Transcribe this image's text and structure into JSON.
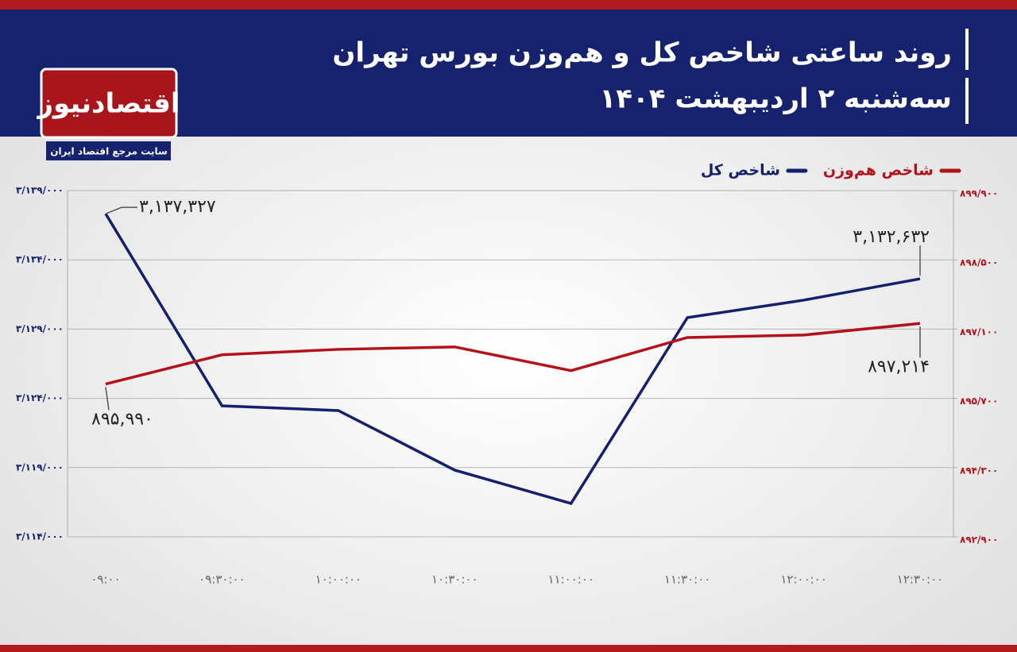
{
  "header": {
    "title": "روند ساعتی شاخص کل و هم‌وزن بورس تهران",
    "subtitle": "سه‌شنبه ۲ اردیبهشت ۱۴۰۴",
    "logo": "اقتصادنیوز",
    "logo_tagline": "سایت مرجع اقتصاد ایران"
  },
  "chart_data": {
    "type": "line",
    "categories": [
      "۰۹:۰۰",
      "۰۹:۳۰:۰۰",
      "۱۰:۰۰:۰۰",
      "۱۰:۳۰:۰۰",
      "۱۱:۰۰:۰۰",
      "۱۱:۳۰:۰۰",
      "۱۲:۰۰:۰۰",
      "۱۲:۳۰:۰۰"
    ],
    "series": [
      {
        "name": "شاخص کل",
        "color": "#15206a",
        "values": [
          3137327,
          3123460,
          3123120,
          3118820,
          3116410,
          3129830,
          3131090,
          3132632
        ],
        "value_labels": [
          "۳,۱۳۷,۳۲۷",
          null,
          null,
          null,
          null,
          null,
          null,
          "۳,۱۳۲,۶۳۲"
        ]
      },
      {
        "name": "شاخص هم‌وزن",
        "color": "#b3121b",
        "axis": "y2",
        "values": [
          895990,
          896580,
          896690,
          896740,
          896260,
          896930,
          896980,
          897214
        ],
        "value_labels": [
          "۸۹۵,۹۹۰",
          null,
          null,
          null,
          null,
          null,
          null,
          "۸۹۷,۲۱۴"
        ]
      }
    ],
    "ylim": [
      3114000,
      3139000
    ],
    "yticks": [
      {
        "value": 3114000,
        "label": "۳/۱۱۴/۰۰۰"
      },
      {
        "value": 3119000,
        "label": "۳/۱۱۹/۰۰۰"
      },
      {
        "value": 3124000,
        "label": "۳/۱۲۴/۰۰۰"
      },
      {
        "value": 3129000,
        "label": "۳/۱۲۹/۰۰۰"
      },
      {
        "value": 3134000,
        "label": "۳/۱۳۴/۰۰۰"
      },
      {
        "value": 3139000,
        "label": "۳/۱۳۹/۰۰۰"
      }
    ],
    "y2lim": [
      892900,
      899900
    ],
    "y2ticks": [
      {
        "value": 892900,
        "label": "۸۹۲/۹۰۰"
      },
      {
        "value": 894300,
        "label": "۸۹۴/۳۰۰"
      },
      {
        "value": 895700,
        "label": "۸۹۵/۷۰۰"
      },
      {
        "value": 897100,
        "label": "۸۹۷/۱۰۰"
      },
      {
        "value": 898500,
        "label": "۸۹۸/۵۰۰"
      },
      {
        "value": 899900,
        "label": "۸۹۹/۹۰۰"
      }
    ],
    "grid": true
  }
}
